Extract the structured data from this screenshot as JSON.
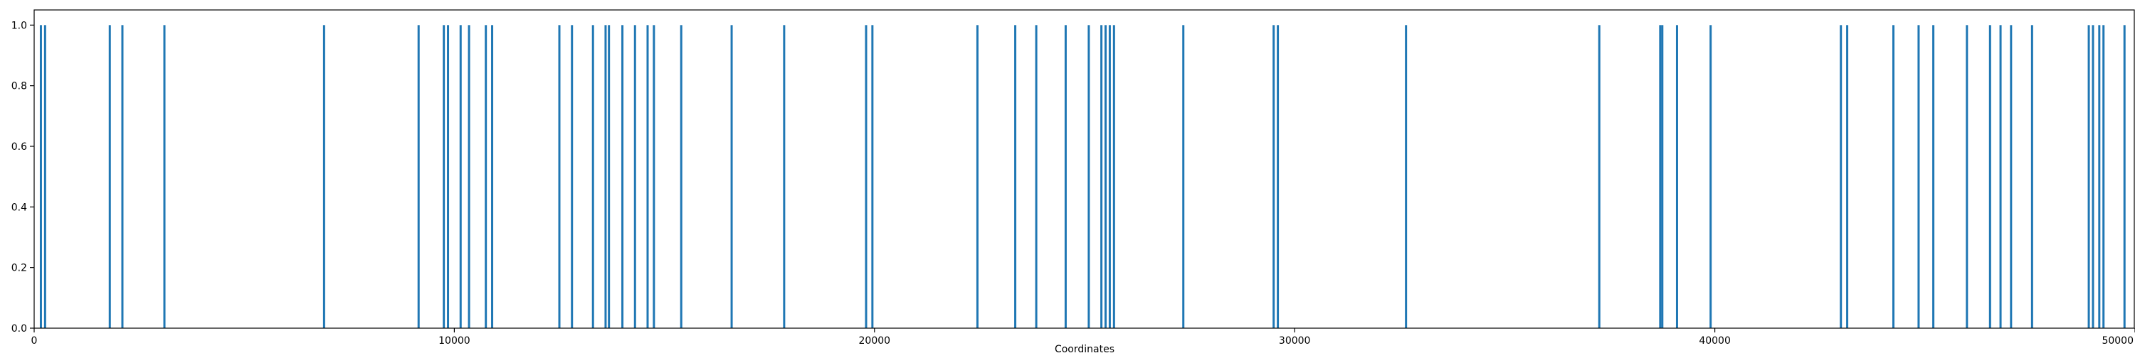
{
  "chart_data": {
    "type": "bar",
    "title": "",
    "xlabel": "Coordinates",
    "ylabel": "",
    "xlim": [
      0,
      50000
    ],
    "ylim": [
      0,
      1.05
    ],
    "x_ticks": [
      0,
      10000,
      20000,
      30000,
      40000,
      50000
    ],
    "y_ticks": [
      0.0,
      0.2,
      0.4,
      0.6,
      0.8,
      1.0
    ],
    "x_tick_labels": [
      "0",
      "10000",
      "20000",
      "30000",
      "40000",
      "50000"
    ],
    "y_tick_labels": [
      "0.0",
      "0.2",
      "0.4",
      "0.6",
      "0.8",
      "1.0"
    ],
    "grid": false,
    "bar_color": "#1f77b4",
    "series": [
      {
        "x": [
          160,
          260,
          1800,
          2100,
          3100,
          6900,
          9150,
          9750,
          9850,
          10150,
          10350,
          10750,
          10900,
          12500,
          12800,
          13300,
          13600,
          13680,
          14000,
          14300,
          14600,
          14750,
          15400,
          16600,
          17850,
          19800,
          19950,
          22450,
          23350,
          23850,
          24550,
          25100,
          25400,
          25500,
          25600,
          25700,
          27350,
          29500,
          29600,
          32650,
          37250,
          38700,
          38750,
          39100,
          39900,
          43000,
          43150,
          44250,
          44850,
          45200,
          46000,
          46550,
          46800,
          47050,
          47550,
          48900,
          49000,
          49150,
          49250,
          49750
        ],
        "values": [
          1,
          1,
          1,
          1,
          1,
          1,
          1,
          1,
          1,
          1,
          1,
          1,
          1,
          1,
          1,
          1,
          1,
          1,
          1,
          1,
          1,
          1,
          1,
          1,
          1,
          1,
          1,
          1,
          1,
          1,
          1,
          1,
          1,
          1,
          1,
          1,
          1,
          1,
          1,
          1,
          1,
          1,
          1,
          1,
          1,
          1,
          1,
          1,
          1,
          1,
          1,
          1,
          1,
          1,
          1,
          1,
          1,
          1,
          1,
          1
        ]
      }
    ]
  }
}
